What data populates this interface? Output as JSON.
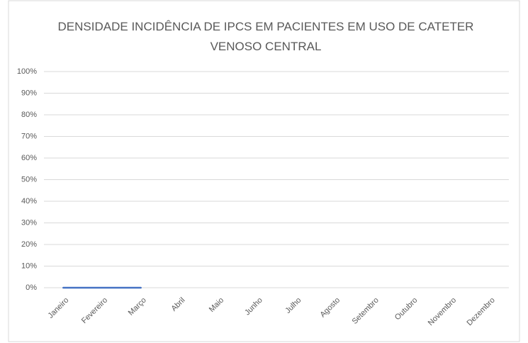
{
  "chart_data": {
    "type": "line",
    "title": "DENSIDADE INCIDÊNCIA DE IPCS EM PACIENTES EM USO DE CATETER VENOSO CENTRAL",
    "categories": [
      "Janeiro",
      "Fevereiro",
      "Março",
      "Abril",
      "Maio",
      "Junho",
      "Julho",
      "Agosto",
      "Setembro",
      "Outubro",
      "Novembro",
      "Dezembro"
    ],
    "series": [
      {
        "color": "#4472c4",
        "values": [
          0,
          0,
          0,
          null,
          null,
          null,
          null,
          null,
          null,
          null,
          null,
          null
        ]
      }
    ],
    "ylim": [
      0,
      100
    ],
    "yticks": [
      {
        "value": 0,
        "label": "0%"
      },
      {
        "value": 10,
        "label": "10%"
      },
      {
        "value": 20,
        "label": "20%"
      },
      {
        "value": 30,
        "label": "30%"
      },
      {
        "value": 40,
        "label": "40%"
      },
      {
        "value": 50,
        "label": "50%"
      },
      {
        "value": 60,
        "label": "60%"
      },
      {
        "value": 70,
        "label": "70%"
      },
      {
        "value": 80,
        "label": "80%"
      },
      {
        "value": 90,
        "label": "90%"
      },
      {
        "value": 100,
        "label": "100%"
      }
    ],
    "grid": true
  }
}
